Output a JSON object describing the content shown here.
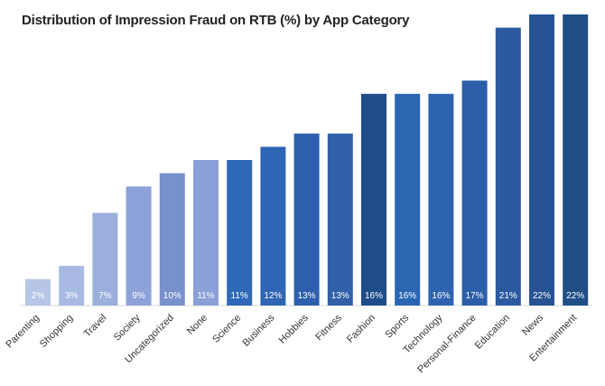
{
  "chart_data": {
    "type": "bar",
    "title": "Distribution of Impression Fraud on RTB (%) by App Category",
    "xlabel": "",
    "ylabel": "",
    "ylim": [
      0,
      22
    ],
    "grid": false,
    "legend": "none",
    "categories": [
      "Parenting",
      "Shopping",
      "Travel",
      "Society",
      "Uncategorized",
      "None",
      "Science",
      "Business",
      "Hobbies",
      "Fitness",
      "Fashion",
      "Sports",
      "Technology",
      "Personal-Finance",
      "Education",
      "News",
      "Entertainment"
    ],
    "values": [
      2,
      3,
      7,
      9,
      10,
      11,
      11,
      12,
      13,
      13,
      16,
      16,
      16,
      17,
      21,
      22,
      22
    ],
    "data_labels": [
      "2%",
      "3%",
      "7%",
      "9%",
      "10%",
      "11%",
      "11%",
      "12%",
      "13%",
      "13%",
      "16%",
      "16%",
      "16%",
      "17%",
      "21%",
      "22%",
      "22%"
    ],
    "bar_colors": [
      "#b7c5e6",
      "#a8bae3",
      "#9bafdc",
      "#8ca2d8",
      "#7890cc",
      "#8aa0d6",
      "#2f68b8",
      "#2f65b5",
      "#2d5fae",
      "#3160a8",
      "#1e4d8a",
      "#2c66b3",
      "#2e63b1",
      "#2d5ea9",
      "#2c5aa0",
      "#265394",
      "#1f4e85"
    ]
  }
}
